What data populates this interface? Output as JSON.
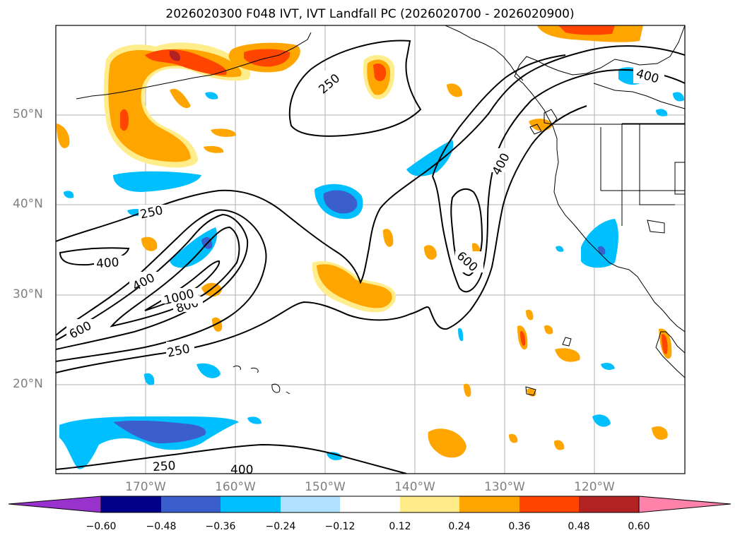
{
  "title": "2026020300 F048 IVT, IVT Landfall PC (2026020700 - 2026020900)",
  "map": {
    "lat_labels": [
      "50°N",
      "40°N",
      "30°N",
      "20°N"
    ],
    "lon_labels": [
      "170°W",
      "160°W",
      "150°W",
      "140°W",
      "130°W",
      "120°W"
    ],
    "contour_labels": [
      "250",
      "250",
      "250",
      "250",
      "400",
      "400",
      "400",
      "400",
      "400",
      "600",
      "600",
      "800",
      "1000"
    ]
  },
  "colorbar": {
    "colors": [
      "#9932cc",
      "#00008b",
      "#3a5fcd",
      "#00bfff",
      "#b0e2ff",
      "#ffffff",
      "#ffec8b",
      "#ffa500",
      "#ff4500",
      "#b22222",
      "#ff82ab"
    ],
    "ticks": [
      "−0.60",
      "−0.48",
      "−0.36",
      "−0.24",
      "−0.12",
      "0.12",
      "0.24",
      "0.36",
      "0.48",
      "0.60"
    ]
  }
}
